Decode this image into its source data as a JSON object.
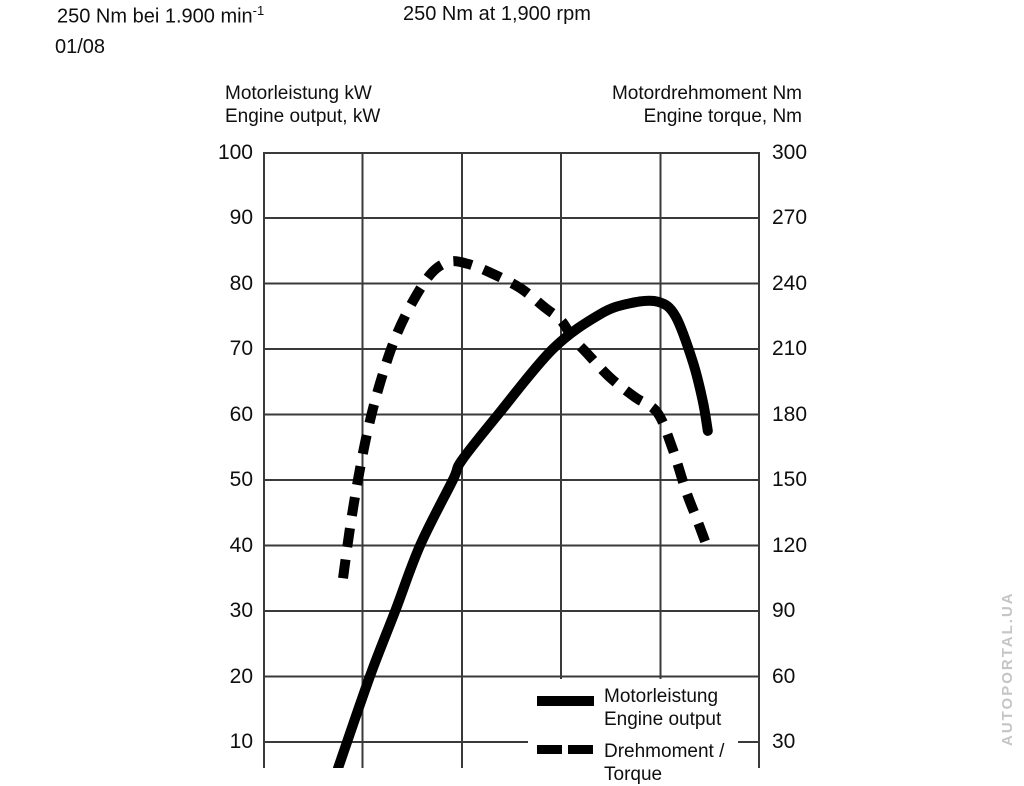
{
  "header": {
    "torque_spec_de": "250 Nm bei 1.900 min",
    "torque_spec_de_sup": "-1",
    "torque_spec_en": "250 Nm at 1,900 rpm",
    "date_code": "01/08"
  },
  "axes": {
    "left": {
      "title_de": "Motorleistung kW",
      "title_en": "Engine output, kW",
      "ticks": [
        100,
        90,
        80,
        70,
        60,
        50,
        40,
        30,
        20,
        10
      ]
    },
    "right": {
      "title_de": "Motordrehmoment Nm",
      "title_en": "Engine torque, Nm",
      "ticks": [
        300,
        270,
        240,
        210,
        180,
        150,
        120,
        90,
        60,
        30
      ]
    }
  },
  "legend": {
    "power": {
      "line1": "Motorleistung",
      "line2": "Engine output"
    },
    "torque": {
      "line1": "Drehmoment /",
      "line2": "Torque"
    }
  },
  "watermark": "AUTOPORTAL.UA",
  "colors": {
    "background": "#ffffff",
    "grid": "#3a3a3a",
    "curve": "#000000",
    "text": "#0f0f0f",
    "watermark": "#c5c5c5"
  },
  "chart_data": {
    "type": "line",
    "title": "",
    "xlabel": "",
    "x_axis": {
      "tick_labels_visible": false,
      "range_normalized": [
        0,
        1
      ]
    },
    "left_axis": {
      "label": "Motorleistung kW / Engine output, kW",
      "unit": "kW",
      "visible_range": [
        10,
        100
      ],
      "gridline_step": 10
    },
    "right_axis": {
      "label": "Motordrehmoment Nm / Engine torque, Nm",
      "unit": "Nm",
      "visible_range": [
        30,
        300
      ],
      "gridline_step": 30
    },
    "grid": true,
    "legend_position": "bottom-right-inside",
    "annotations": {
      "peak_torque_nm": 250,
      "peak_torque_rpm": 1900,
      "peak_power_kw": 77
    },
    "series": [
      {
        "name": "Motorleistung / Engine output",
        "axis": "left",
        "style": "solid",
        "color": "#000000",
        "points": [
          [
            0.151,
            6
          ],
          [
            0.215,
            20
          ],
          [
            0.266,
            30
          ],
          [
            0.316,
            40
          ],
          [
            0.382,
            50
          ],
          [
            0.4,
            53
          ],
          [
            0.473,
            60
          ],
          [
            0.583,
            70
          ],
          [
            0.678,
            75.3
          ],
          [
            0.74,
            77
          ],
          [
            0.795,
            77.2
          ],
          [
            0.83,
            75
          ],
          [
            0.865,
            68
          ],
          [
            0.885,
            62
          ],
          [
            0.895,
            57.5
          ]
        ]
      },
      {
        "name": "Drehmoment / Torque",
        "axis": "right",
        "style": "dashed",
        "color": "#000000",
        "points": [
          [
            0.161,
            105
          ],
          [
            0.175,
            128
          ],
          [
            0.191,
            150
          ],
          [
            0.211,
            173
          ],
          [
            0.235,
            194
          ],
          [
            0.266,
            215
          ],
          [
            0.302,
            232
          ],
          [
            0.34,
            245
          ],
          [
            0.376,
            250
          ],
          [
            0.412,
            249
          ],
          [
            0.457,
            245
          ],
          [
            0.517,
            238
          ],
          [
            0.567,
            229
          ],
          [
            0.6,
            223
          ],
          [
            0.623,
            215
          ],
          [
            0.648,
            209
          ],
          [
            0.698,
            197
          ],
          [
            0.748,
            188
          ],
          [
            0.793,
            181
          ],
          [
            0.823,
            165
          ],
          [
            0.851,
            145
          ],
          [
            0.873,
            132
          ],
          [
            0.891,
            121
          ]
        ]
      }
    ]
  }
}
